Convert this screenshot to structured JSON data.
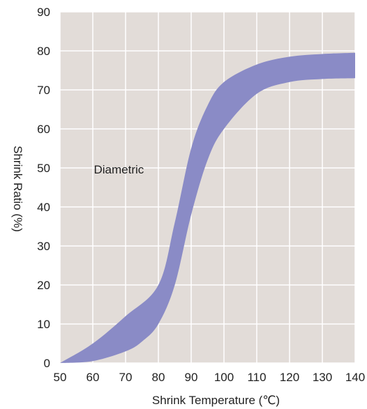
{
  "chart_data": {
    "type": "area",
    "title": "",
    "xlabel": "Shrink Temperature (℃)",
    "ylabel": "Shrink Ratio (%)",
    "xlim": [
      50,
      140
    ],
    "ylim": [
      0,
      90
    ],
    "x_ticks": [
      "50",
      "60",
      "70",
      "80",
      "90",
      "100",
      "110",
      "120",
      "130",
      "140"
    ],
    "y_ticks": [
      "0",
      "10",
      "20",
      "30",
      "40",
      "50",
      "60",
      "70",
      "80",
      "90"
    ],
    "grid": true,
    "band": {
      "upper": [
        [
          50,
          0
        ],
        [
          60,
          5
        ],
        [
          70,
          12
        ],
        [
          80,
          20
        ],
        [
          85,
          36
        ],
        [
          90,
          55
        ],
        [
          95,
          66
        ],
        [
          100,
          72
        ],
        [
          110,
          76.5
        ],
        [
          120,
          78.5
        ],
        [
          130,
          79.2
        ],
        [
          140,
          79.5
        ]
      ],
      "lower": [
        [
          50,
          0
        ],
        [
          60,
          0.5
        ],
        [
          70,
          3
        ],
        [
          75,
          5.5
        ],
        [
          80,
          10
        ],
        [
          85,
          20
        ],
        [
          90,
          38
        ],
        [
          95,
          52
        ],
        [
          100,
          60
        ],
        [
          110,
          69
        ],
        [
          120,
          72
        ],
        [
          130,
          72.8
        ],
        [
          140,
          73
        ]
      ]
    },
    "annotations": [
      {
        "text": "Diametric",
        "x": 65,
        "y": 48
      }
    ],
    "colors": {
      "band": "#8a8bc6",
      "plot_bg": "#e2dcd8",
      "grid": "#ffffff"
    }
  }
}
